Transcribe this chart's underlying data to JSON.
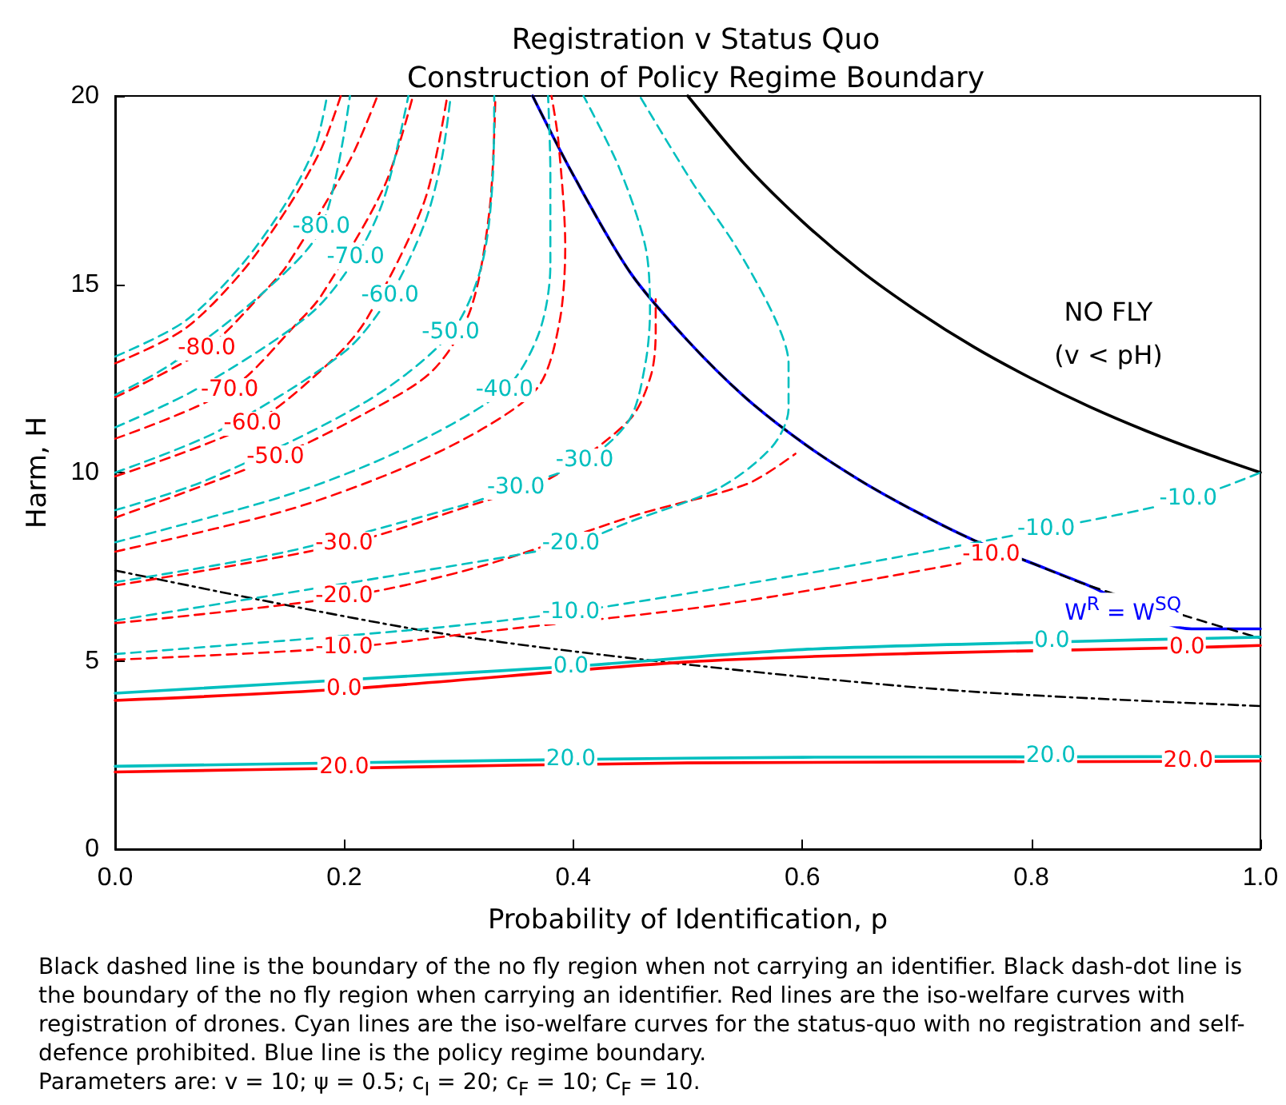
{
  "chart_data": {
    "type": "line",
    "title": "Registration v Status Quo\nConstruction of Policy Regime Boundary",
    "xlabel": "Probability of Identification, p",
    "ylabel": "Harm, H",
    "xlim": [
      0,
      1
    ],
    "ylim": [
      0,
      20
    ],
    "xticks": [
      {
        "value": 0,
        "label": "0.0"
      },
      {
        "value": 0.2,
        "label": "0.2"
      },
      {
        "value": 0.4,
        "label": "0.4"
      },
      {
        "value": 0.6,
        "label": "0.6"
      },
      {
        "value": 0.8,
        "label": "0.8"
      },
      {
        "value": 1,
        "label": "1.0"
      }
    ],
    "yticks": [
      0,
      5,
      10,
      15,
      20
    ],
    "grid": false,
    "marker": "none",
    "series": [
      {
        "color": "#000000",
        "line_style": "solid",
        "x": [
          0.5,
          0.55,
          0.6,
          0.65,
          0.7,
          0.75,
          0.8,
          0.85,
          0.9,
          0.95,
          1.0
        ],
        "values": [
          20,
          18.18,
          16.67,
          15.38,
          14.29,
          13.33,
          12.5,
          11.76,
          11.11,
          10.53,
          10
        ]
      },
      {
        "color": "#0000ff",
        "line_style": "solid",
        "x": [
          0.3645,
          0.4,
          0.45,
          0.5,
          0.55,
          0.6,
          0.65,
          0.7,
          0.75,
          0.8,
          0.85,
          0.94,
          1.0
        ],
        "values": [
          20,
          17.9,
          15.3,
          13.5,
          12.0,
          10.8,
          9.8,
          8.95,
          8.2,
          7.6,
          7.0,
          5.85,
          5.85
        ]
      },
      {
        "color": "#000000",
        "line_style": "dashed",
        "x": [
          0.3645,
          0.4,
          0.45,
          0.5,
          0.55,
          0.6,
          0.65,
          0.7,
          0.75,
          0.8,
          0.85,
          0.95,
          1.0
        ],
        "values": [
          20,
          17.9,
          15.3,
          13.5,
          12.0,
          10.8,
          9.8,
          8.95,
          8.2,
          7.6,
          7.0,
          6.05,
          5.6
        ]
      },
      {
        "color": "#000000",
        "line_style": "dashdot",
        "x": [
          0,
          0.27,
          0.5,
          0.74,
          1.0
        ],
        "values": [
          7.4,
          5.8,
          4.9,
          4.2,
          3.8
        ]
      },
      {
        "color": "#ff0000",
        "line_style": "dashed",
        "x": [
          0,
          0.06,
          0.11,
          0.15,
          0.18,
          0.197
        ],
        "values": [
          12.9,
          13.8,
          15.3,
          17.0,
          18.6,
          20
        ]
      },
      {
        "color": "#ff0000",
        "line_style": "dashed",
        "x": [
          0,
          0.08,
          0.13,
          0.15,
          0.205,
          0.229
        ],
        "values": [
          12.0,
          13.3,
          14.8,
          15.5,
          18.3,
          20
        ]
      },
      {
        "color": "#ff0000",
        "line_style": "dashed",
        "x": [
          0,
          0.1,
          0.16,
          0.18,
          0.235,
          0.26
        ],
        "values": [
          10.9,
          12.2,
          14.0,
          14.7,
          17.6,
          20
        ]
      },
      {
        "color": "#ff0000",
        "line_style": "dashed",
        "x": [
          0,
          0.12,
          0.19,
          0.22,
          0.27,
          0.29
        ],
        "values": [
          9.9,
          11.3,
          13.0,
          14.1,
          17.2,
          20
        ]
      },
      {
        "color": "#ff0000",
        "line_style": "dashed",
        "x": [
          0,
          0.14,
          0.22,
          0.277,
          0.31,
          0.327,
          0.332
        ],
        "values": [
          8.8,
          10.4,
          11.6,
          12.7,
          14.3,
          17,
          20
        ]
      },
      {
        "color": "#ff0000",
        "line_style": "dashed",
        "x": [
          0,
          0.15,
          0.25,
          0.323,
          0.37,
          0.388,
          0.393,
          0.387,
          0.381
        ],
        "values": [
          7.9,
          9.0,
          10.1,
          11.2,
          12.3,
          14.0,
          16.0,
          18.8,
          20
        ]
      },
      {
        "color": "#ff0000",
        "line_style": "dashed",
        "x": [
          0,
          0.2,
          0.318,
          0.38,
          0.449,
          0.468,
          0.472,
          0.472
        ],
        "values": [
          7.0,
          8.1,
          9.2,
          9.85,
          11.4,
          12.6,
          13.8,
          14.6
        ]
      },
      {
        "color": "#ff0000",
        "line_style": "dashed",
        "x": [
          0,
          0.2,
          0.318,
          0.458,
          0.552,
          0.594
        ],
        "values": [
          6.0,
          6.7,
          7.5,
          8.9,
          9.7,
          10.5
        ]
      },
      {
        "color": "#ff0000",
        "line_style": "dashed",
        "x": [
          0,
          0.2,
          0.33,
          0.53,
          0.74,
          0.765,
          0.77
        ],
        "values": [
          5.03,
          5.35,
          5.8,
          6.5,
          7.6,
          7.8,
          8.0
        ]
      },
      {
        "color": "#ff0000",
        "line_style": "solid",
        "x": [
          0,
          0.2,
          0.5,
          0.7,
          0.936,
          1.0
        ],
        "values": [
          3.95,
          4.25,
          4.97,
          5.2,
          5.35,
          5.41
        ]
      },
      {
        "color": "#ff0000",
        "line_style": "solid",
        "x": [
          0,
          0.2,
          0.5,
          0.937,
          1.0
        ],
        "values": [
          2.05,
          2.15,
          2.29,
          2.33,
          2.34
        ]
      },
      {
        "color": "#00bfbf",
        "line_style": "dashed",
        "x": [
          0,
          0.06,
          0.11,
          0.15,
          0.175,
          0.185
        ],
        "values": [
          13.08,
          14.0,
          15.5,
          17.2,
          18.7,
          20
        ]
      },
      {
        "color": "#00bfbf",
        "line_style": "dashed",
        "x": [
          0,
          0.05,
          0.13,
          0.18,
          0.205
        ],
        "values": [
          12.06,
          12.9,
          14.8,
          16.5,
          20
        ]
      },
      {
        "color": "#00bfbf",
        "line_style": "dashed",
        "x": [
          0,
          0.07,
          0.17,
          0.21,
          0.235,
          0.256
        ],
        "values": [
          11.2,
          12.2,
          14.2,
          15.7,
          17.3,
          20
        ]
      },
      {
        "color": "#00bfbf",
        "line_style": "dashed",
        "x": [
          0,
          0.09,
          0.2,
          0.24,
          0.27,
          0.285,
          0.293
        ],
        "values": [
          10.0,
          11.1,
          13.2,
          14.7,
          16.6,
          18.3,
          20
        ]
      },
      {
        "color": "#00bfbf",
        "line_style": "dashed",
        "x": [
          0,
          0.08,
          0.22,
          0.293,
          0.32,
          0.33,
          0.331
        ],
        "values": [
          9.0,
          9.8,
          11.9,
          13.7,
          15.5,
          18,
          20
        ]
      },
      {
        "color": "#00bfbf",
        "line_style": "dashed",
        "x": [
          0,
          0.15,
          0.25,
          0.34,
          0.37,
          0.38,
          0.38,
          0.378
        ],
        "values": [
          8.15,
          9.4,
          10.6,
          12.2,
          13.7,
          15.5,
          18,
          20
        ]
      },
      {
        "color": "#00bfbf",
        "line_style": "dashed",
        "x": [
          0,
          0.15,
          0.3,
          0.35,
          0.41,
          0.449,
          0.463,
          0.467,
          0.463,
          0.44,
          0.409
        ],
        "values": [
          7.09,
          7.9,
          9.1,
          9.6,
          10.3,
          11.4,
          12.9,
          14.3,
          16.0,
          18.1,
          20
        ]
      },
      {
        "color": "#00bfbf",
        "line_style": "dashed",
        "x": [
          0,
          0.25,
          0.398,
          0.45,
          0.528,
          0.574,
          0.588,
          0.588,
          0.576,
          0.542,
          0.504,
          0.458
        ],
        "values": [
          6.07,
          7.3,
          8.1,
          8.7,
          9.6,
          10.7,
          11.7,
          12.9,
          14.1,
          16.0,
          17.7,
          20
        ]
      },
      {
        "color": "#00bfbf",
        "line_style": "dashed",
        "x": [
          0,
          0.27,
          0.398,
          0.6,
          0.7,
          0.813,
          0.937,
          1.0
        ],
        "values": [
          5.18,
          5.85,
          6.3,
          7.3,
          7.85,
          8.5,
          9.3,
          10.0
        ]
      },
      {
        "color": "#00bfbf",
        "line_style": "solid",
        "x": [
          0,
          0.27,
          0.398,
          0.6,
          0.818,
          1.0
        ],
        "values": [
          4.14,
          4.62,
          4.85,
          5.3,
          5.5,
          5.63
        ]
      },
      {
        "color": "#00bfbf",
        "line_style": "solid",
        "x": [
          0,
          0.398,
          0.6,
          0.817,
          1.0
        ],
        "values": [
          2.2,
          2.38,
          2.44,
          2.45,
          2.46
        ]
      }
    ],
    "annotations": [
      "NO FLY",
      "(v < pH)",
      "Black dashed line is the boundary of the no fly region when not carrying an identifier. Black dash-dot line is the boundary of the no fly region when carrying an identifier. Red lines are the iso-welfare curves with registration of drones. Cyan lines are the iso-welfare curves for the status-quo with no registration and self-defence prohibited. Blue line is the policy regime boundary.",
      "Parameters are: v = 10; ψ = 0.5; c$_{I}$ = 20; c$_{F}$ = 10; C$_{F}$ = 10.",
      {
        "text": "W$^{R}$ = W$^{SQ}$",
        "x": 0.88,
        "y": 6.35
      },
      {
        "text": "-80.0",
        "x": 0.08,
        "y": 13.3
      },
      {
        "text": "-70.0",
        "x": 0.1,
        "y": 12.2
      },
      {
        "text": "-60.0",
        "x": 0.12,
        "y": 11.3
      },
      {
        "text": "-50.0",
        "x": 0.14,
        "y": 10.4
      },
      {
        "text": "-30.0",
        "x": 0.2,
        "y": 8.1
      },
      {
        "text": "-20.0",
        "x": 0.2,
        "y": 6.7
      },
      {
        "text": "-10.0",
        "x": 0.2,
        "y": 5.35
      },
      {
        "text": "-10.0",
        "x": 0.765,
        "y": 7.8
      },
      {
        "text": "0.0",
        "x": 0.2,
        "y": 4.25
      },
      {
        "text": "0.0",
        "x": 0.936,
        "y": 5.35
      },
      {
        "text": "20.0",
        "x": 0.2,
        "y": 2.15
      },
      {
        "text": "20.0",
        "x": 0.937,
        "y": 2.33
      },
      {
        "text": "-80.0",
        "x": 0.18,
        "y": 16.5
      },
      {
        "text": "-70.0",
        "x": 0.21,
        "y": 15.7
      },
      {
        "text": "-60.0",
        "x": 0.24,
        "y": 14.7
      },
      {
        "text": "-50.0",
        "x": 0.293,
        "y": 13.7
      },
      {
        "text": "-40.0",
        "x": 0.34,
        "y": 12.2
      },
      {
        "text": "-30.0",
        "x": 0.35,
        "y": 9.6
      },
      {
        "text": "-30.0",
        "x": 0.41,
        "y": 10.3
      },
      {
        "text": "-20.0",
        "x": 0.398,
        "y": 8.1
      },
      {
        "text": "-10.0",
        "x": 0.398,
        "y": 6.3
      },
      {
        "text": "-10.0",
        "x": 0.813,
        "y": 8.5
      },
      {
        "text": "-10.0",
        "x": 0.937,
        "y": 9.3
      },
      {
        "text": "0.0",
        "x": 0.398,
        "y": 4.85
      },
      {
        "text": "0.0",
        "x": 0.818,
        "y": 5.5
      },
      {
        "text": "20.0",
        "x": 0.398,
        "y": 2.38
      },
      {
        "text": "20.0",
        "x": 0.817,
        "y": 2.45
      }
    ]
  }
}
